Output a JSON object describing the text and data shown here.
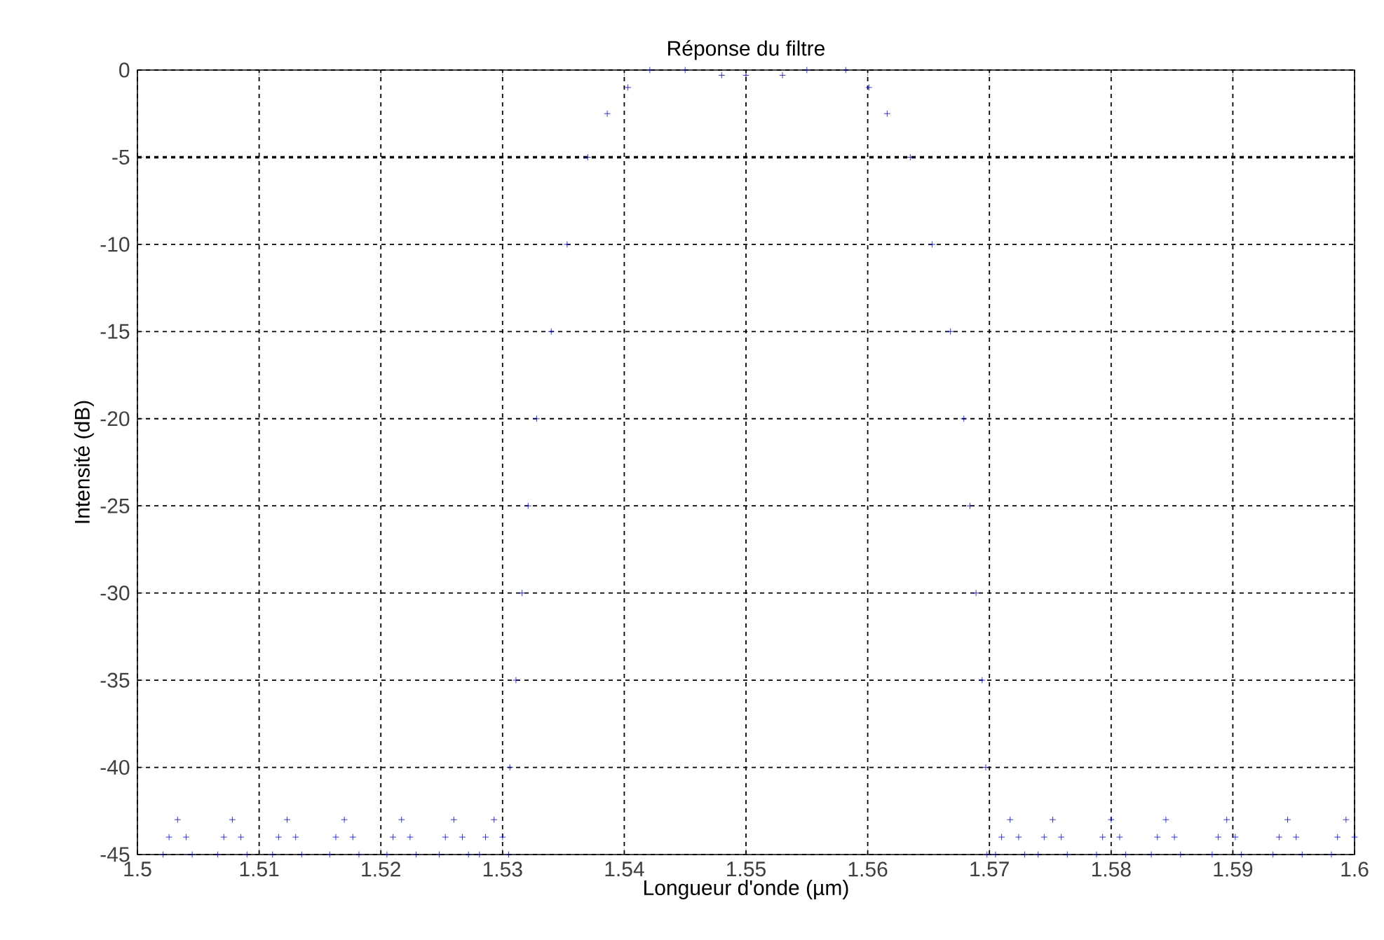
{
  "chart_data": {
    "type": "scatter",
    "title": "Réponse du filtre",
    "xlabel": "Longueur d'onde (µm)",
    "ylabel": "Intensité (dB)",
    "xlim": [
      1.5,
      1.6
    ],
    "ylim": [
      -45,
      0
    ],
    "xticks": [
      1.5,
      1.51,
      1.52,
      1.53,
      1.54,
      1.55,
      1.56,
      1.57,
      1.58,
      1.59,
      1.6
    ],
    "yticks": [
      -45,
      -40,
      -35,
      -30,
      -25,
      -20,
      -15,
      -10,
      -5,
      0
    ],
    "grid": true,
    "marker": "cross",
    "ref_lines": [
      {
        "axis": "y",
        "value": -5,
        "color": "#000000",
        "line_style": "dashed"
      }
    ],
    "series": [
      {
        "color": "#0000ff",
        "x": [
          1.5021,
          1.5026,
          1.5033,
          1.504,
          1.5045,
          1.5066,
          1.5071,
          1.5078,
          1.5085,
          1.509,
          1.5111,
          1.5116,
          1.5123,
          1.513,
          1.5135,
          1.5158,
          1.5163,
          1.517,
          1.5177,
          1.5182,
          1.5205,
          1.521,
          1.5217,
          1.5224,
          1.5229,
          1.5248,
          1.5253,
          1.526,
          1.5267,
          1.5272,
          1.5281,
          1.5286,
          1.5293,
          1.53,
          1.5305,
          1.5306,
          1.5311,
          1.5316,
          1.5321,
          1.5328,
          1.534,
          1.5353,
          1.537,
          1.5386,
          1.5403,
          1.5421,
          1.545,
          1.548,
          1.55,
          1.553,
          1.555,
          1.5582,
          1.5601,
          1.5616,
          1.5635,
          1.5653,
          1.5668,
          1.5679,
          1.5684,
          1.5689,
          1.5694,
          1.5697,
          1.5698,
          1.5705,
          1.571,
          1.5717,
          1.5724,
          1.5729,
          1.574,
          1.5745,
          1.5752,
          1.5759,
          1.5764,
          1.5788,
          1.5793,
          1.58,
          1.5807,
          1.5812,
          1.5833,
          1.5838,
          1.5845,
          1.5852,
          1.5857,
          1.5883,
          1.5888,
          1.5895,
          1.5902,
          1.5907,
          1.5933,
          1.5938,
          1.5945,
          1.5952,
          1.5957,
          1.5981,
          1.5986,
          1.5993,
          1.6
        ],
        "values": [
          -45,
          -44,
          -43,
          -44,
          -45,
          -45,
          -44,
          -43,
          -44,
          -45,
          -45,
          -44,
          -43,
          -44,
          -45,
          -45,
          -44,
          -43,
          -44,
          -45,
          -45,
          -44,
          -43,
          -44,
          -45,
          -45,
          -44,
          -43,
          -44,
          -45,
          -45,
          -44,
          -43,
          -44,
          -45,
          -40,
          -35,
          -30,
          -25,
          -20,
          -15,
          -10,
          -5,
          -2.5,
          -1,
          0,
          0,
          -0.3,
          -0.3,
          -0.3,
          0,
          0,
          -1,
          -2.5,
          -5,
          -10,
          -15,
          -20,
          -25,
          -30,
          -35,
          -40,
          -45,
          -45,
          -44,
          -43,
          -44,
          -45,
          -45,
          -44,
          -43,
          -44,
          -45,
          -45,
          -44,
          -43,
          -44,
          -45,
          -45,
          -44,
          -43,
          -44,
          -45,
          -45,
          -44,
          -43,
          -44,
          -45,
          -45,
          -44,
          -43,
          -44,
          -45,
          -45,
          -44,
          -43,
          -44
        ]
      }
    ]
  }
}
